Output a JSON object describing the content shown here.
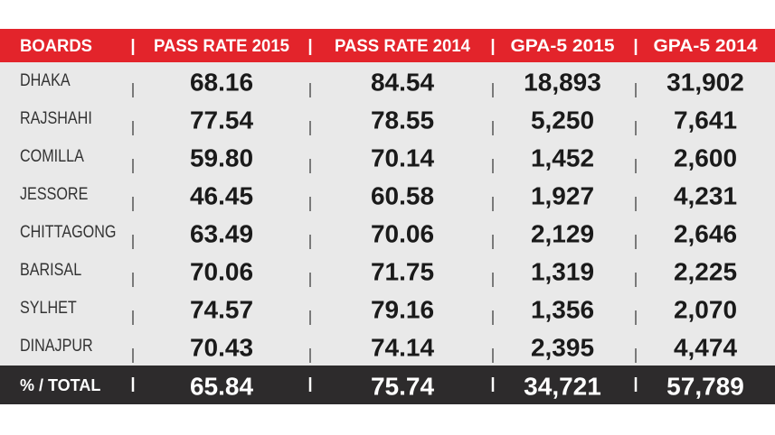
{
  "table": {
    "header": [
      "BOARDS",
      "PASS RATE 2015",
      "PASS RATE 2014",
      "GPA-5 2015",
      "GPA-5 2014"
    ],
    "rows": [
      [
        "DHAKA",
        "68.16",
        "84.54",
        "18,893",
        "31,902"
      ],
      [
        "RAJSHAHI",
        "77.54",
        "78.55",
        "5,250",
        "7,641"
      ],
      [
        "COMILLA",
        "59.80",
        "70.14",
        "1,452",
        "2,600"
      ],
      [
        "JESSORE",
        "46.45",
        "60.58",
        "1,927",
        "4,231"
      ],
      [
        "CHITTAGONG",
        "63.49",
        "70.06",
        "2,129",
        "2,646"
      ],
      [
        "BARISAL",
        "70.06",
        "71.75",
        "1,319",
        "2,225"
      ],
      [
        "SYLHET",
        "74.57",
        "79.16",
        "1,356",
        "2,070"
      ],
      [
        "DINAJPUR",
        "70.43",
        "74.14",
        "2,395",
        "4,474"
      ]
    ],
    "total": [
      "% / TOTAL",
      "65.84",
      "75.74",
      "34,721",
      "57,789"
    ]
  }
}
